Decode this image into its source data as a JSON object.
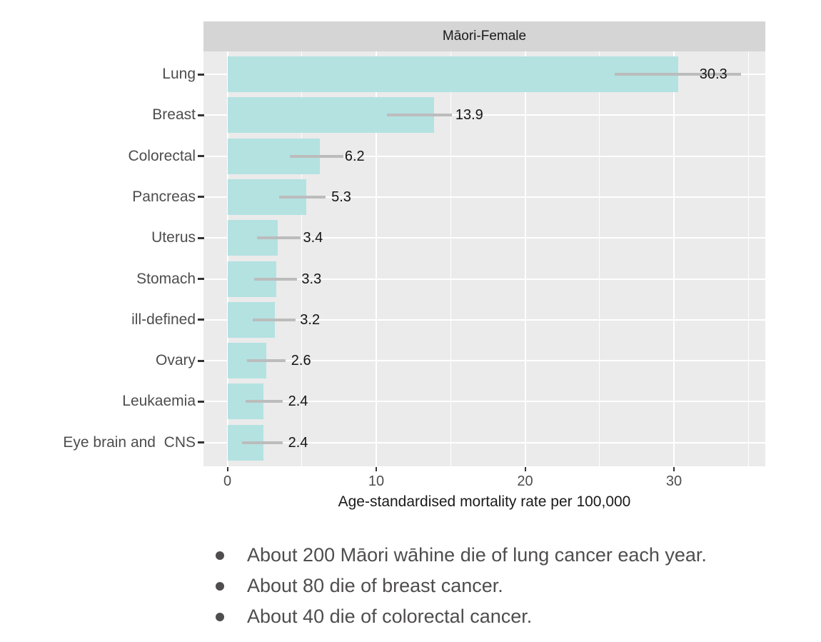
{
  "chart_data": {
    "type": "bar",
    "orientation": "horizontal",
    "facet_title": "Māori-Female",
    "xlabel": "Age-standardised mortality rate per 100,000",
    "ylabel": "",
    "x_ticks": [
      0,
      10,
      20,
      30
    ],
    "x_minor_ticks": [
      5,
      15,
      25,
      35
    ],
    "xlim": [
      -1.6,
      36.2
    ],
    "grid": true,
    "legend": "none",
    "categories": [
      "Lung",
      "Breast",
      "Colorectal",
      "Pancreas",
      "Uterus",
      "Stomach",
      "ill-defined",
      "Ovary",
      "Leukaemia",
      "Eye brain and  CNS"
    ],
    "values": [
      30.3,
      13.9,
      6.2,
      5.3,
      3.4,
      3.3,
      3.2,
      2.6,
      2.4,
      2.4
    ],
    "ci_low": [
      26.0,
      10.7,
      4.2,
      3.5,
      2.0,
      1.8,
      1.7,
      1.3,
      1.2,
      1.0
    ],
    "ci_high": [
      34.5,
      15.1,
      7.8,
      6.6,
      4.9,
      4.7,
      4.6,
      3.9,
      3.7,
      3.7
    ],
    "colors": {
      "bar": "#b3e2e1",
      "panel_bg": "#ebebeb",
      "strip_bg": "#d5d5d5",
      "grid": "#ffffff",
      "errorbar": "#bcbcbc"
    }
  },
  "notes": {
    "items": [
      "About 200 Māori wāhine die of lung cancer each year.",
      "About 80 die of breast cancer.",
      "About 40 die of colorectal cancer."
    ]
  }
}
